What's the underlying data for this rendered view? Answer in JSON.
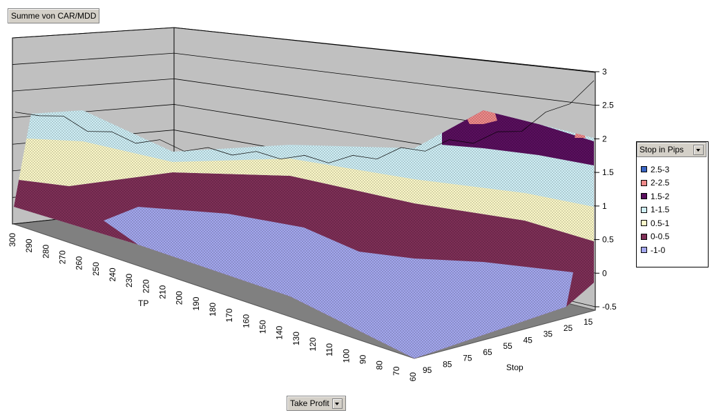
{
  "title_button": "Summe von CAR/MDD",
  "legend": {
    "title": "Stop in Pips",
    "items": [
      {
        "label": "2.5-3",
        "color": "#3a66c4"
      },
      {
        "label": "2-2.5",
        "color": "#f08a8a"
      },
      {
        "label": "1.5-2",
        "color": "#5a0f5e"
      },
      {
        "label": "1-1.5",
        "color": "#cfeff6"
      },
      {
        "label": "0.5-1",
        "color": "#fbf8c8"
      },
      {
        "label": "0-0.5",
        "color": "#7f2f57"
      },
      {
        "label": "-1-0",
        "color": "#a3a7ee"
      }
    ]
  },
  "take_profit_button": "Take Profit",
  "chart_data": {
    "type": "surface",
    "title": "",
    "tp_axis_label": "TP",
    "stop_axis_label": "Stop",
    "z_ticks": [
      "3",
      "2.5",
      "2",
      "1.5",
      "1",
      "0.5",
      "0",
      "-0.5"
    ],
    "zlim": [
      -0.5,
      3
    ],
    "tp_ticks": [
      "300",
      "290",
      "280",
      "270",
      "260",
      "250",
      "240",
      "230",
      "220",
      "210",
      "200",
      "190",
      "180",
      "170",
      "160",
      "150",
      "140",
      "130",
      "120",
      "110",
      "100",
      "90",
      "80",
      "70",
      "60"
    ],
    "stop_ticks": [
      "95",
      "85",
      "75",
      "65",
      "55",
      "45",
      "35",
      "25",
      "15"
    ],
    "ridge_profile": {
      "tp": [
        300,
        290,
        280,
        270,
        260,
        250,
        240,
        230,
        220,
        210,
        200,
        190,
        180,
        170,
        160,
        150,
        140,
        130,
        120,
        110,
        100,
        90,
        80,
        70,
        60
      ],
      "value": [
        1.8,
        1.9,
        1.7,
        1.5,
        1.3,
        1.2,
        1.1,
        1.0,
        0.9,
        0.9,
        0.8,
        0.8,
        0.7,
        0.7,
        0.7,
        0.8,
        0.9,
        1.0,
        1.1,
        1.2,
        1.3,
        1.5,
        1.8,
        2.2,
        2.6
      ]
    },
    "grid": true
  }
}
